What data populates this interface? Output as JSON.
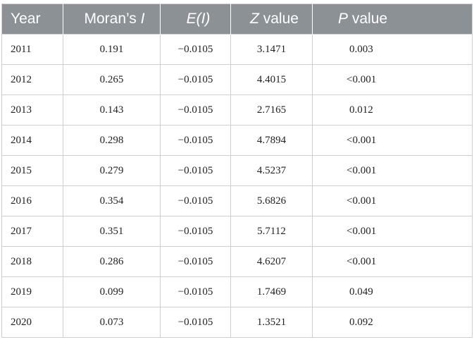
{
  "table": {
    "headers": {
      "year": "Year",
      "moran_prefix": "Moran’s ",
      "moran_italic": "I",
      "ei": "E(I)",
      "z_italic": "Z",
      "z_suffix": " value",
      "p_italic": "P",
      "p_suffix": " value"
    },
    "rows": [
      {
        "year": "2011",
        "moran_i": "0.191",
        "e_i": "−0.0105",
        "z": "3.1471",
        "p": "0.003"
      },
      {
        "year": "2012",
        "moran_i": "0.265",
        "e_i": "−0.0105",
        "z": "4.4015",
        "p": "<0.001"
      },
      {
        "year": "2013",
        "moran_i": "0.143",
        "e_i": "−0.0105",
        "z": "2.7165",
        "p": "0.012"
      },
      {
        "year": "2014",
        "moran_i": "0.298",
        "e_i": "−0.0105",
        "z": "4.7894",
        "p": "<0.001"
      },
      {
        "year": "2015",
        "moran_i": "0.279",
        "e_i": "−0.0105",
        "z": "4.5237",
        "p": "<0.001"
      },
      {
        "year": "2016",
        "moran_i": "0.354",
        "e_i": "−0.0105",
        "z": "5.6826",
        "p": "<0.001"
      },
      {
        "year": "2017",
        "moran_i": "0.351",
        "e_i": "−0.0105",
        "z": "5.7112",
        "p": "<0.001"
      },
      {
        "year": "2018",
        "moran_i": "0.286",
        "e_i": "−0.0105",
        "z": "4.6207",
        "p": "<0.001"
      },
      {
        "year": "2019",
        "moran_i": "0.099",
        "e_i": "−0.0105",
        "z": "1.7469",
        "p": "0.049"
      },
      {
        "year": "2020",
        "moran_i": "0.073",
        "e_i": "−0.0105",
        "z": "1.3521",
        "p": "0.092"
      }
    ]
  }
}
